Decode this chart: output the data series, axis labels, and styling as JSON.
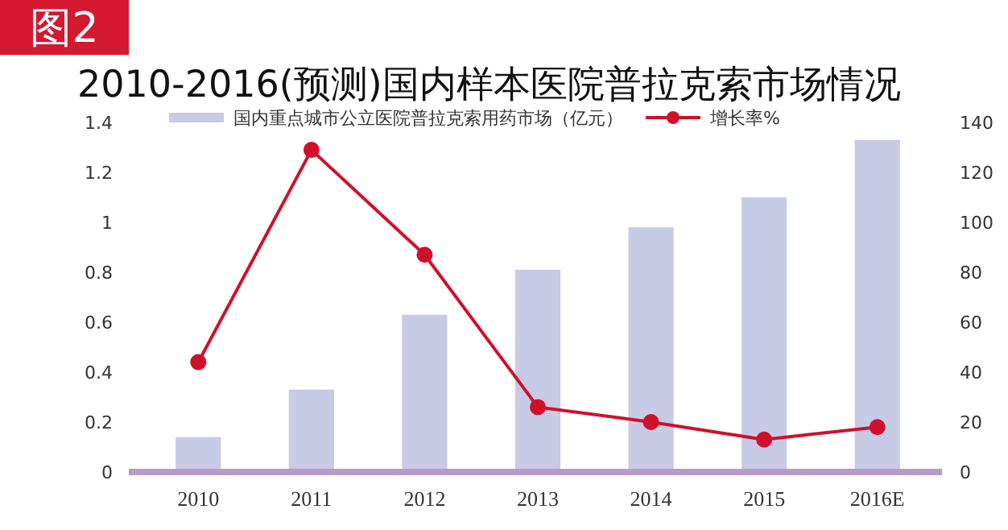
{
  "chart_data": {
    "type": "bar",
    "title": "2010-2016(预测)国内样本医院普拉克索市场情况",
    "annotations": [
      "图2"
    ],
    "categories": [
      "2010",
      "2011",
      "2012",
      "2013",
      "2014",
      "2015",
      "2016E"
    ],
    "series": [
      {
        "name": "国内重点城市公立医院普拉克索用药市场（亿元）",
        "color": "#c8cbe6",
        "values": [
          0.14,
          0.33,
          0.63,
          0.81,
          0.98,
          1.1,
          1.33
        ]
      },
      {
        "name": "增长率%",
        "type": "line",
        "axis": "y2",
        "color": "#d0102a",
        "marker": "circle",
        "values": [
          44,
          129,
          87,
          26,
          20,
          13,
          18
        ]
      }
    ],
    "ylim": [
      0,
      1.4
    ],
    "yticks": [
      0,
      0.2,
      0.4,
      0.6,
      0.8,
      1,
      1.2,
      1.4
    ],
    "y2lim": [
      0,
      140
    ],
    "y2ticks": [
      0,
      20,
      40,
      60,
      80,
      100,
      120,
      140
    ],
    "legend": "top"
  }
}
